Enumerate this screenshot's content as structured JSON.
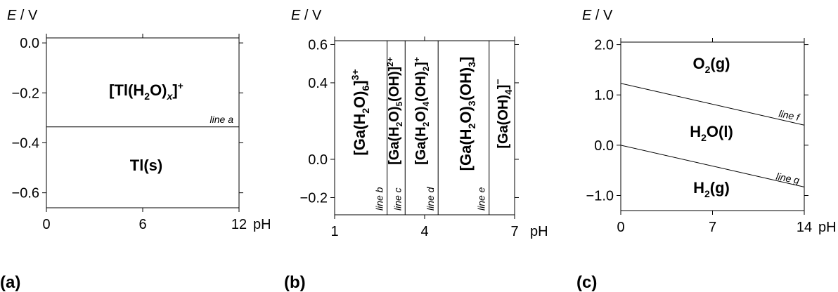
{
  "chart_data": [
    {
      "type": "line",
      "panel_label": "(a)",
      "ylabel_var": "E",
      "ylabel_unit": " / V",
      "xlabel": "pH",
      "xlim": [
        0,
        12
      ],
      "ylim": [
        -0.66,
        0.02
      ],
      "xticks": [
        0,
        6,
        12
      ],
      "xtick_labels": [
        "0",
        "6",
        "12"
      ],
      "yticks": [
        0.0,
        -0.2,
        -0.4,
        -0.6
      ],
      "ytick_labels": [
        "0.0",
        "−0.2",
        "−0.4",
        "−0.6"
      ],
      "lines": [
        {
          "name": "line a",
          "x": [
            0,
            12
          ],
          "y": [
            -0.336,
            -0.336
          ]
        }
      ],
      "regions": [
        {
          "label": "Tl(s)",
          "x": 6,
          "y": -0.5
        },
        {
          "label": "[Tl(H2O)x]+",
          "x": 6,
          "y": -0.2
        }
      ]
    },
    {
      "type": "line",
      "panel_label": "(b)",
      "ylabel_var": "E",
      "ylabel_unit": " / V",
      "xlabel": "pH",
      "xlim": [
        1,
        7
      ],
      "ylim": [
        -0.29,
        0.62
      ],
      "xticks": [
        1,
        4,
        7
      ],
      "xtick_labels": [
        "1",
        "4",
        "7"
      ],
      "yticks": [
        0.6,
        0.4,
        0.0,
        -0.2
      ],
      "ytick_labels": [
        "0.6",
        "0.4",
        "0.0",
        "−0.2"
      ],
      "lines": [
        {
          "name": "line b",
          "x": [
            2.75,
            2.75
          ],
          "y": [
            -0.29,
            0.62
          ]
        },
        {
          "name": "line c",
          "x": [
            3.35,
            3.35
          ],
          "y": [
            -0.29,
            0.62
          ]
        },
        {
          "name": "line d",
          "x": [
            4.45,
            4.45
          ],
          "y": [
            -0.29,
            0.62
          ]
        },
        {
          "name": "line e",
          "x": [
            6.15,
            6.15
          ],
          "y": [
            -0.29,
            0.62
          ]
        }
      ],
      "regions": [
        {
          "label": "[Ga(H2O)6]3+"
        },
        {
          "label": "[Ga(H2O)5(OH)]2+"
        },
        {
          "label": "[Ga(H2O)4(OH)2]+"
        },
        {
          "label": "[Ga(H2O)3(OH)3]"
        },
        {
          "label": "[Ga(OH)4]−"
        }
      ]
    },
    {
      "type": "line",
      "panel_label": "(c)",
      "ylabel_var": "E",
      "ylabel_unit": " / V",
      "xlabel": "pH",
      "xlim": [
        0,
        14
      ],
      "ylim": [
        -1.3,
        2.05
      ],
      "xticks": [
        0,
        7,
        14
      ],
      "xtick_labels": [
        "0",
        "7",
        "14"
      ],
      "yticks": [
        2.0,
        1.0,
        0.0,
        -1.0
      ],
      "ytick_labels": [
        "2.0",
        "1.0",
        "0.0",
        "−1.0"
      ],
      "lines": [
        {
          "name": "line f",
          "x": [
            0,
            14
          ],
          "y": [
            1.23,
            0.4
          ]
        },
        {
          "name": "line g",
          "x": [
            0,
            14
          ],
          "y": [
            0.0,
            -0.83
          ]
        }
      ],
      "regions": [
        {
          "label": "O2(g)"
        },
        {
          "label": "H2O(l)"
        },
        {
          "label": "H2(g)"
        }
      ]
    }
  ]
}
